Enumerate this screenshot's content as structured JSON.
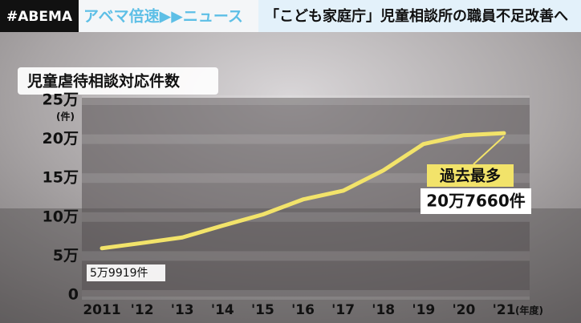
{
  "header": {
    "logo": "#ABEMA",
    "program": "アベマ倍速▶▶ニュース",
    "headline": "「こども家庭庁」児童相談所の職員不足改善へ"
  },
  "chart_data": {
    "type": "line",
    "title": "児童虐待相談対応件数",
    "categories": [
      "2011",
      "'12",
      "'13",
      "'14",
      "'15",
      "'16",
      "'17",
      "'18",
      "'19",
      "'20",
      "'21"
    ],
    "x_unit": "(年度)",
    "y_unit": "(件)",
    "values": [
      59919,
      66701,
      73802,
      88931,
      103286,
      122575,
      133778,
      159838,
      193780,
      205044,
      207660
    ],
    "value_labels": [
      "5万9919件",
      null,
      null,
      null,
      null,
      null,
      null,
      null,
      null,
      null,
      "20万7660件"
    ],
    "annotation": "過去最多",
    "color": "#f2e36a",
    "ylim": [
      0,
      250000
    ],
    "yticks": [
      0,
      {
        "value": 50000,
        "label": "5万"
      },
      {
        "value": 100000,
        "label": "10万"
      },
      {
        "value": 150000,
        "label": "15万"
      },
      {
        "value": 200000,
        "label": "20万"
      },
      {
        "value": 250000,
        "label": "25万"
      }
    ],
    "grid": true
  }
}
